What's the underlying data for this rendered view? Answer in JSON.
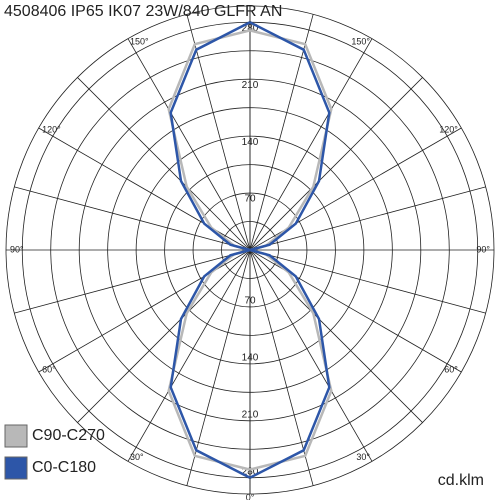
{
  "chart_data": {
    "type": "polar",
    "title": "4508406 IP65 IK07 23W/840 GLFR AN",
    "unit_label": "cd.klm",
    "angles": [
      0,
      15,
      30,
      45,
      60,
      75,
      90,
      105,
      120,
      135,
      150,
      165,
      180
    ],
    "rlim": [
      0,
      300
    ],
    "rgrid": [
      35,
      70,
      105,
      140,
      175,
      210,
      245,
      280
    ],
    "rticks": [
      70,
      140,
      210,
      280
    ],
    "angle_ticks": [
      {
        "value": 0,
        "label": "0°"
      },
      {
        "value": 30,
        "label": "30°"
      },
      {
        "value": 60,
        "label": "60°"
      },
      {
        "value": 90,
        "label": "90°"
      },
      {
        "value": 120,
        "label": "120°"
      },
      {
        "value": 150,
        "label": "150°"
      }
    ],
    "series": [
      {
        "name": "C90-C270",
        "color": "#b8b8b8",
        "values": [
          270,
          262,
          200,
          110,
          55,
          20,
          0,
          20,
          55,
          110,
          200,
          262,
          270
        ]
      },
      {
        "name": "C0-C180",
        "color": "#2d56a8",
        "values": [
          280,
          255,
          195,
          120,
          65,
          25,
          0,
          25,
          65,
          120,
          195,
          255,
          280
        ]
      }
    ],
    "legend": "bottom-left"
  }
}
